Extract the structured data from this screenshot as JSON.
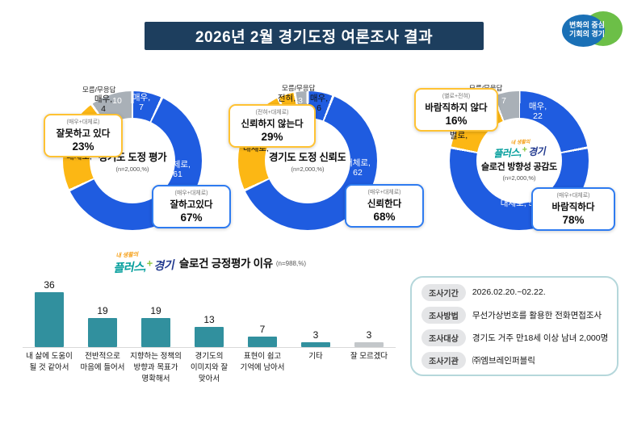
{
  "header": {
    "title": "2026년 2월 경기도정 여론조사 결과"
  },
  "brand_logo": {
    "line1": "변화의 중심",
    "line2": "기회의 경기"
  },
  "slogan_logo": {
    "prefix": "내 생활의",
    "plus": "플러스,",
    "symbol": "+",
    "region": "경기"
  },
  "colors": {
    "banner_navy": "#1d3e5e",
    "primary_blue": "#1f5ce0",
    "accent_yellow": "#fcb714",
    "neutral_gray": "#a9b0b7",
    "bar_teal": "#31909e",
    "bar_gray": "#c3c7ca",
    "callout_blue_border": "#2e7bf0",
    "callout_yellow_border": "#ffc233"
  },
  "chart_data": [
    {
      "type": "pie",
      "title": "경기도 도정 평가",
      "subtitle": "(n=2,000,%)",
      "segments": [
        {
          "name": "매우 (잘하고 있다)",
          "value": 7,
          "color": "#1f5ce0"
        },
        {
          "name": "대체로 (잘하고 있다)",
          "value": 61,
          "color": "#1f5ce0"
        },
        {
          "name": "대체로 (잘못하고 있다)",
          "value": 18,
          "color": "#fcb714"
        },
        {
          "name": "매우 (잘못하고 있다)",
          "value": 4,
          "color": "#fcb714"
        },
        {
          "name": "모름/무응답",
          "value": 10,
          "color": "#a9b0b7"
        }
      ],
      "slice_labels": [
        "매우,\n7",
        "대체로,\n61",
        "18\n대체로,",
        "매우,\n4",
        "10",
        "모름/무응답"
      ],
      "callouts": {
        "negative": {
          "sub": "(매우+대체로)",
          "label": "잘못하고 있다",
          "value": "23%"
        },
        "positive": {
          "sub": "(매우+대체로)",
          "label": "잘하고있다",
          "value": "67%"
        }
      }
    },
    {
      "type": "pie",
      "title": "경기도 도정 신뢰도",
      "subtitle": "(n=2,000,%)",
      "segments": [
        {
          "name": "매우 (신뢰한다)",
          "value": 6,
          "color": "#1f5ce0"
        },
        {
          "name": "대체로 (신뢰한다)",
          "value": 62,
          "color": "#1f5ce0"
        },
        {
          "name": "대체로 (신뢰하지 않는다)",
          "value": 25,
          "color": "#fcb714"
        },
        {
          "name": "전혀 (신뢰하지 않는다)",
          "value": 4,
          "color": "#fcb714"
        },
        {
          "name": "모름/무응답",
          "value": 3,
          "color": "#a9b0b7"
        }
      ],
      "slice_labels": [
        "매우,\n6",
        "대체로,\n62",
        "25\n대체로,",
        "전혀,\n4",
        "3",
        "모름/무응답"
      ],
      "callouts": {
        "negative": {
          "sub": "(전혀+대체로)",
          "label": "신뢰하지 않는다",
          "value": "29%"
        },
        "positive": {
          "sub": "(매우+대체로)",
          "label": "신뢰한다",
          "value": "68%"
        }
      }
    },
    {
      "type": "pie",
      "title": "슬로건 방향성 공감도",
      "subtitle": "(n=2,000,%)",
      "segments": [
        {
          "name": "매우 (바람직하다)",
          "value": 22,
          "color": "#1f5ce0"
        },
        {
          "name": "대체로 (바람직하다)",
          "value": 56,
          "color": "#1f5ce0"
        },
        {
          "name": "별로 (바람직하지 않다)",
          "value": 12,
          "color": "#fcb714"
        },
        {
          "name": "전혀 (바람직하지 않다)",
          "value": 4,
          "color": "#fcb714"
        },
        {
          "name": "모름/무응답",
          "value": 7,
          "color": "#a9b0b7"
        }
      ],
      "slice_labels": [
        "매우,\n22",
        "대체로, 56",
        "12\n별로,",
        "전혀,\n4",
        "7",
        "모름/무응답"
      ],
      "callouts": {
        "negative": {
          "sub": "(별로+전혀)",
          "label": "바람직하지 않다",
          "value": "16%"
        },
        "positive": {
          "sub": "(매우+대체로)",
          "label": "바람직하다",
          "value": "78%"
        }
      }
    },
    {
      "type": "bar",
      "title": "슬로건 긍정평가 이유",
      "subtitle": "(n=988,%)",
      "categories": [
        "내 삶에 도움이\n될 것 같아서",
        "전반적으로\n마음에 들어서",
        "지향하는 정책의\n방향과 목표가\n명확해서",
        "경기도의\n이미지와 잘\n맞아서",
        "표현이 쉽고\n기억에 남아서",
        "기타",
        "잘 모르겠다"
      ],
      "values": [
        36,
        19,
        19,
        13,
        7,
        3,
        3
      ],
      "bar_colors": [
        "#31909e",
        "#31909e",
        "#31909e",
        "#31909e",
        "#31909e",
        "#31909e",
        "#c3c7ca"
      ],
      "ylim": [
        0,
        40
      ],
      "grid": false
    }
  ],
  "survey_info": {
    "items": [
      {
        "label": "조사기간",
        "value": "2026.02.20.~02.22."
      },
      {
        "label": "조사방법",
        "value": "무선가상번호를 활용한 전화면접조사"
      },
      {
        "label": "조사대상",
        "value": "경기도 거주 만18세 이상 남녀 2,000명"
      },
      {
        "label": "조사기관",
        "value": "㈜엠브레인퍼블릭"
      }
    ]
  }
}
